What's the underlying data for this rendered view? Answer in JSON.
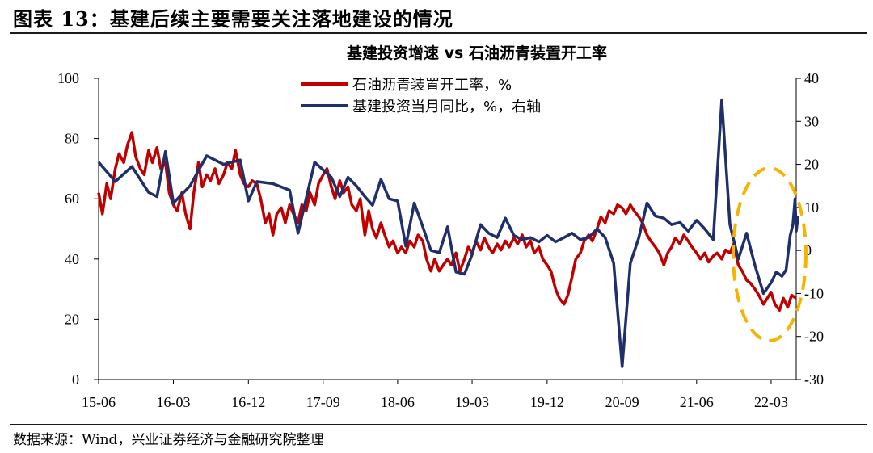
{
  "figure": {
    "heading": "图表 13：基建后续主要需要关注落地建设的情况",
    "source": "数据来源：Wind，兴业证券经济与金融研究院整理"
  },
  "colors": {
    "red_series": "#c00000",
    "navy_series": "#1f2f6b",
    "highlight": "#f5b400",
    "axis": "#000000"
  },
  "chart_data": {
    "type": "line",
    "title": "基建投资增速 vs 石油沥青装置开工率",
    "x_labels": [
      "15-06",
      "16-03",
      "16-12",
      "17-09",
      "18-06",
      "19-03",
      "19-12",
      "20-09",
      "21-06",
      "22-03"
    ],
    "x_range": [
      "2015-06",
      "2022-06"
    ],
    "y_left": {
      "range": [
        0,
        100
      ],
      "ticks": [
        "0",
        "20",
        "40",
        "60",
        "80",
        "100"
      ]
    },
    "y_right": {
      "range": [
        -30,
        40
      ],
      "ticks": [
        "-30",
        "-20",
        "-10",
        "0",
        "10",
        "20",
        "30",
        "40"
      ]
    },
    "legend": [
      "石油沥青装置开工率，%",
      "基建投资当月同比，%，右轴"
    ],
    "series": [
      {
        "name": "石油沥青装置开工率，%",
        "axis": "left",
        "color": "#c00000",
        "points": [
          [
            "2015-06-01",
            62
          ],
          [
            "2015-06-15",
            55
          ],
          [
            "2015-07-01",
            65
          ],
          [
            "2015-07-15",
            60
          ],
          [
            "2015-08-01",
            70
          ],
          [
            "2015-08-15",
            75
          ],
          [
            "2015-09-01",
            72
          ],
          [
            "2015-09-15",
            78
          ],
          [
            "2015-10-01",
            82
          ],
          [
            "2015-10-15",
            74
          ],
          [
            "2015-11-01",
            70
          ],
          [
            "2015-11-15",
            68
          ],
          [
            "2015-12-01",
            76
          ],
          [
            "2015-12-15",
            72
          ],
          [
            "2016-01-01",
            77
          ],
          [
            "2016-01-15",
            70
          ],
          [
            "2016-02-01",
            72
          ],
          [
            "2016-02-15",
            62
          ],
          [
            "2016-03-01",
            58
          ],
          [
            "2016-03-15",
            56
          ],
          [
            "2016-04-01",
            62
          ],
          [
            "2016-04-15",
            55
          ],
          [
            "2016-05-01",
            50
          ],
          [
            "2016-05-15",
            62
          ],
          [
            "2016-06-01",
            72
          ],
          [
            "2016-06-15",
            64
          ],
          [
            "2016-07-01",
            68
          ],
          [
            "2016-07-15",
            66
          ],
          [
            "2016-08-01",
            70
          ],
          [
            "2016-08-15",
            65
          ],
          [
            "2016-09-01",
            68
          ],
          [
            "2016-09-15",
            72
          ],
          [
            "2016-10-01",
            70
          ],
          [
            "2016-10-15",
            76
          ],
          [
            "2016-11-01",
            68
          ],
          [
            "2016-11-15",
            65
          ],
          [
            "2016-12-01",
            64
          ],
          [
            "2016-12-15",
            66
          ],
          [
            "2017-01-01",
            65
          ],
          [
            "2017-01-15",
            60
          ],
          [
            "2017-02-01",
            52
          ],
          [
            "2017-02-15",
            55
          ],
          [
            "2017-03-01",
            48
          ],
          [
            "2017-03-15",
            55
          ],
          [
            "2017-04-01",
            57
          ],
          [
            "2017-04-15",
            52
          ],
          [
            "2017-05-01",
            58
          ],
          [
            "2017-05-15",
            55
          ],
          [
            "2017-06-01",
            52
          ],
          [
            "2017-06-15",
            58
          ],
          [
            "2017-07-01",
            56
          ],
          [
            "2017-07-15",
            62
          ],
          [
            "2017-08-01",
            58
          ],
          [
            "2017-08-15",
            65
          ],
          [
            "2017-09-01",
            68
          ],
          [
            "2017-09-15",
            70
          ],
          [
            "2017-10-01",
            64
          ],
          [
            "2017-10-15",
            60
          ],
          [
            "2017-11-01",
            66
          ],
          [
            "2017-11-15",
            62
          ],
          [
            "2017-12-01",
            64
          ],
          [
            "2017-12-15",
            58
          ],
          [
            "2018-01-01",
            56
          ],
          [
            "2018-01-15",
            60
          ],
          [
            "2018-02-01",
            48
          ],
          [
            "2018-02-15",
            56
          ],
          [
            "2018-03-01",
            50
          ],
          [
            "2018-03-15",
            47
          ],
          [
            "2018-04-01",
            52
          ],
          [
            "2018-04-15",
            48
          ],
          [
            "2018-05-01",
            44
          ],
          [
            "2018-05-15",
            46
          ],
          [
            "2018-06-01",
            42
          ],
          [
            "2018-06-15",
            44
          ],
          [
            "2018-07-01",
            42
          ],
          [
            "2018-07-15",
            46
          ],
          [
            "2018-08-01",
            44
          ],
          [
            "2018-08-15",
            48
          ],
          [
            "2018-09-01",
            46
          ],
          [
            "2018-09-15",
            40
          ],
          [
            "2018-10-01",
            36
          ],
          [
            "2018-10-15",
            40
          ],
          [
            "2018-11-01",
            36
          ],
          [
            "2018-11-15",
            38
          ],
          [
            "2018-12-01",
            40
          ],
          [
            "2018-12-15",
            38
          ],
          [
            "2019-01-01",
            42
          ],
          [
            "2019-01-15",
            36
          ],
          [
            "2019-02-01",
            40
          ],
          [
            "2019-02-15",
            44
          ],
          [
            "2019-03-01",
            42
          ],
          [
            "2019-03-15",
            46
          ],
          [
            "2019-04-01",
            43
          ],
          [
            "2019-04-15",
            47
          ],
          [
            "2019-05-01",
            44
          ],
          [
            "2019-05-15",
            42
          ],
          [
            "2019-06-01",
            45
          ],
          [
            "2019-06-15",
            43
          ],
          [
            "2019-07-01",
            46
          ],
          [
            "2019-07-15",
            44
          ],
          [
            "2019-08-01",
            47
          ],
          [
            "2019-08-15",
            45
          ],
          [
            "2019-09-01",
            48
          ],
          [
            "2019-09-15",
            44
          ],
          [
            "2019-10-01",
            46
          ],
          [
            "2019-10-15",
            42
          ],
          [
            "2019-11-01",
            44
          ],
          [
            "2019-11-15",
            40
          ],
          [
            "2019-12-01",
            38
          ],
          [
            "2019-12-15",
            36
          ],
          [
            "2020-01-01",
            30
          ],
          [
            "2020-01-15",
            27
          ],
          [
            "2020-02-01",
            25
          ],
          [
            "2020-02-15",
            28
          ],
          [
            "2020-03-01",
            34
          ],
          [
            "2020-03-15",
            40
          ],
          [
            "2020-04-01",
            42
          ],
          [
            "2020-04-15",
            46
          ],
          [
            "2020-05-01",
            48
          ],
          [
            "2020-05-15",
            46
          ],
          [
            "2020-06-01",
            50
          ],
          [
            "2020-06-15",
            54
          ],
          [
            "2020-07-01",
            52
          ],
          [
            "2020-07-15",
            56
          ],
          [
            "2020-08-01",
            55
          ],
          [
            "2020-08-15",
            58
          ],
          [
            "2020-09-01",
            57
          ],
          [
            "2020-09-15",
            55
          ],
          [
            "2020-10-01",
            58
          ],
          [
            "2020-10-15",
            56
          ],
          [
            "2020-11-01",
            54
          ],
          [
            "2020-11-15",
            52
          ],
          [
            "2020-12-01",
            48
          ],
          [
            "2020-12-15",
            46
          ],
          [
            "2021-01-01",
            44
          ],
          [
            "2021-01-15",
            42
          ],
          [
            "2021-02-01",
            38
          ],
          [
            "2021-02-15",
            42
          ],
          [
            "2021-03-01",
            44
          ],
          [
            "2021-03-15",
            47
          ],
          [
            "2021-04-01",
            45
          ],
          [
            "2021-04-15",
            48
          ],
          [
            "2021-05-01",
            46
          ],
          [
            "2021-05-15",
            44
          ],
          [
            "2021-06-01",
            42
          ],
          [
            "2021-06-15",
            40
          ],
          [
            "2021-07-01",
            42
          ],
          [
            "2021-07-15",
            39
          ],
          [
            "2021-08-01",
            41
          ],
          [
            "2021-08-15",
            42
          ],
          [
            "2021-09-01",
            40
          ],
          [
            "2021-09-15",
            43
          ],
          [
            "2021-10-01",
            42
          ],
          [
            "2021-10-15",
            45
          ],
          [
            "2021-11-01",
            38
          ],
          [
            "2021-11-15",
            36
          ],
          [
            "2021-12-01",
            33
          ],
          [
            "2021-12-15",
            32
          ],
          [
            "2022-01-01",
            30
          ],
          [
            "2022-01-15",
            28
          ],
          [
            "2022-02-01",
            25
          ],
          [
            "2022-02-15",
            27
          ],
          [
            "2022-03-01",
            29
          ],
          [
            "2022-03-15",
            25
          ],
          [
            "2022-04-01",
            23
          ],
          [
            "2022-04-15",
            27
          ],
          [
            "2022-05-01",
            24
          ],
          [
            "2022-05-15",
            28
          ],
          [
            "2022-06-01",
            27
          ]
        ]
      },
      {
        "name": "基建投资当月同比，%，右轴",
        "axis": "right",
        "color": "#1f2f6b",
        "points": [
          [
            "2015-06-01",
            20.5
          ],
          [
            "2015-08-01",
            16
          ],
          [
            "2015-10-01",
            19.5
          ],
          [
            "2015-12-01",
            13.5
          ],
          [
            "2016-01-01",
            12.5
          ],
          [
            "2016-02-01",
            23
          ],
          [
            "2016-03-01",
            11
          ],
          [
            "2016-05-01",
            15
          ],
          [
            "2016-07-01",
            22
          ],
          [
            "2016-09-01",
            20
          ],
          [
            "2016-11-01",
            21
          ],
          [
            "2016-12-01",
            11.5
          ],
          [
            "2017-01-01",
            16
          ],
          [
            "2017-03-01",
            15.5
          ],
          [
            "2017-05-01",
            14
          ],
          [
            "2017-06-01",
            4
          ],
          [
            "2017-08-01",
            20.5
          ],
          [
            "2017-10-01",
            17
          ],
          [
            "2017-11-01",
            12.5
          ],
          [
            "2017-12-01",
            17
          ],
          [
            "2018-01-01",
            15
          ],
          [
            "2018-02-01",
            12.5
          ],
          [
            "2018-03-01",
            10.5
          ],
          [
            "2018-04-01",
            16.5
          ],
          [
            "2018-05-01",
            12
          ],
          [
            "2018-06-01",
            11.5
          ],
          [
            "2018-07-01",
            1
          ],
          [
            "2018-08-01",
            11
          ],
          [
            "2018-09-01",
            5.5
          ],
          [
            "2018-10-01",
            0
          ],
          [
            "2018-11-01",
            -0.5
          ],
          [
            "2018-12-01",
            5.5
          ],
          [
            "2019-01-01",
            -5
          ],
          [
            "2019-02-01",
            -5.5
          ],
          [
            "2019-03-01",
            -1
          ],
          [
            "2019-04-01",
            6
          ],
          [
            "2019-05-01",
            4
          ],
          [
            "2019-06-01",
            3
          ],
          [
            "2019-07-01",
            7.5
          ],
          [
            "2019-08-01",
            3.5
          ],
          [
            "2019-09-01",
            2.5
          ],
          [
            "2019-10-01",
            3
          ],
          [
            "2019-11-01",
            2
          ],
          [
            "2019-12-01",
            3.5
          ],
          [
            "2020-01-01",
            2
          ],
          [
            "2020-02-01",
            3
          ],
          [
            "2020-03-01",
            4
          ],
          [
            "2020-04-01",
            2.5
          ],
          [
            "2020-05-01",
            3
          ],
          [
            "2020-06-01",
            5
          ],
          [
            "2020-07-01",
            3
          ],
          [
            "2020-08-01",
            -3
          ],
          [
            "2020-09-01",
            -27
          ],
          [
            "2020-10-01",
            -3
          ],
          [
            "2020-11-01",
            3
          ],
          [
            "2020-12-01",
            11
          ],
          [
            "2021-01-01",
            8
          ],
          [
            "2021-02-01",
            7.5
          ],
          [
            "2021-03-01",
            6
          ],
          [
            "2021-04-01",
            6.5
          ],
          [
            "2021-05-01",
            4.5
          ],
          [
            "2021-06-01",
            7
          ],
          [
            "2021-07-01",
            5
          ],
          [
            "2021-08-01",
            2.5
          ],
          [
            "2021-09-01",
            35
          ],
          [
            "2021-10-01",
            6
          ],
          [
            "2021-11-01",
            -2
          ],
          [
            "2021-12-01",
            4
          ],
          [
            "2022-01-01",
            -3.5
          ],
          [
            "2022-02-01",
            -10
          ],
          [
            "2022-03-01",
            -7.5
          ],
          [
            "2022-03-20",
            -5
          ],
          [
            "2022-04-10",
            -6
          ],
          [
            "2022-04-25",
            -4.5
          ],
          [
            "2022-05-10",
            3.5
          ],
          [
            "2022-05-20",
            6
          ],
          [
            "2022-05-28",
            12
          ],
          [
            "2022-06-01",
            4.5
          ],
          [
            "2022-06-08",
            8
          ]
        ]
      }
    ]
  }
}
